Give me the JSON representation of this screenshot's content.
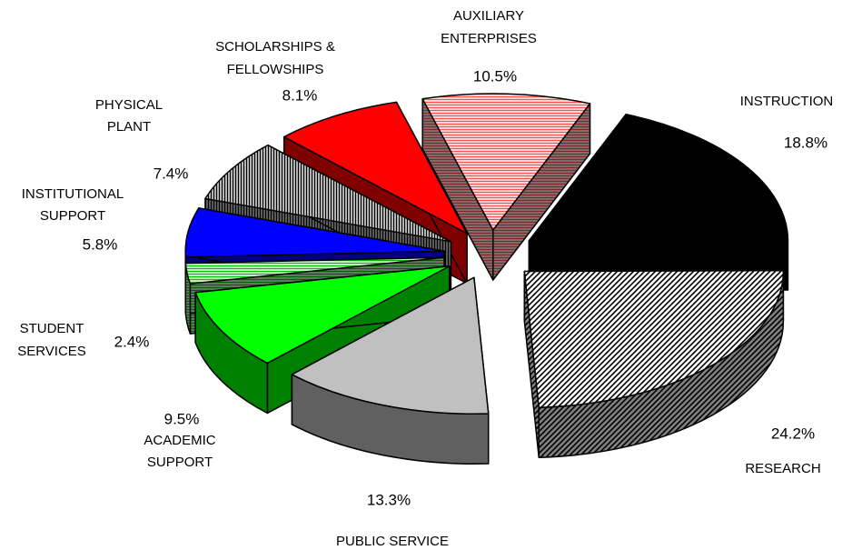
{
  "chart_data": {
    "type": "pie3d",
    "categories": [
      [
        "INSTRUCTION"
      ],
      [
        "RESEARCH"
      ],
      [
        "PUBLIC SERVICE"
      ],
      [
        "ACADEMIC",
        "SUPPORT"
      ],
      [
        "STUDENT",
        "SERVICES"
      ],
      [
        "INSTITUTIONAL",
        "SUPPORT"
      ],
      [
        "PHYSICAL",
        "PLANT"
      ],
      [
        "SCHOLARSHIPS &",
        "FELLOWSHIPS"
      ],
      [
        "AUXILIARY",
        "ENTERPRISES"
      ]
    ],
    "values": [
      18.8,
      24.2,
      13.3,
      9.5,
      2.4,
      5.8,
      7.4,
      8.1,
      10.5
    ],
    "value_labels": [
      "18.8%",
      "24.2%",
      "13.3%",
      "9.5%",
      "2.4%",
      "5.8%",
      "7.4%",
      "8.1%",
      "10.5%"
    ],
    "colors": [
      "#000000",
      "#000000",
      "#c0c0c0",
      "#00ff00",
      "#00c000",
      "#0000ff",
      "#000000",
      "#ff0000",
      "#ff5050"
    ],
    "patterns": [
      "solid",
      "diagonal",
      "solid",
      "solid",
      "hstripe",
      "solid",
      "vstripe",
      "solid",
      "hstripe"
    ],
    "exploded": true
  }
}
